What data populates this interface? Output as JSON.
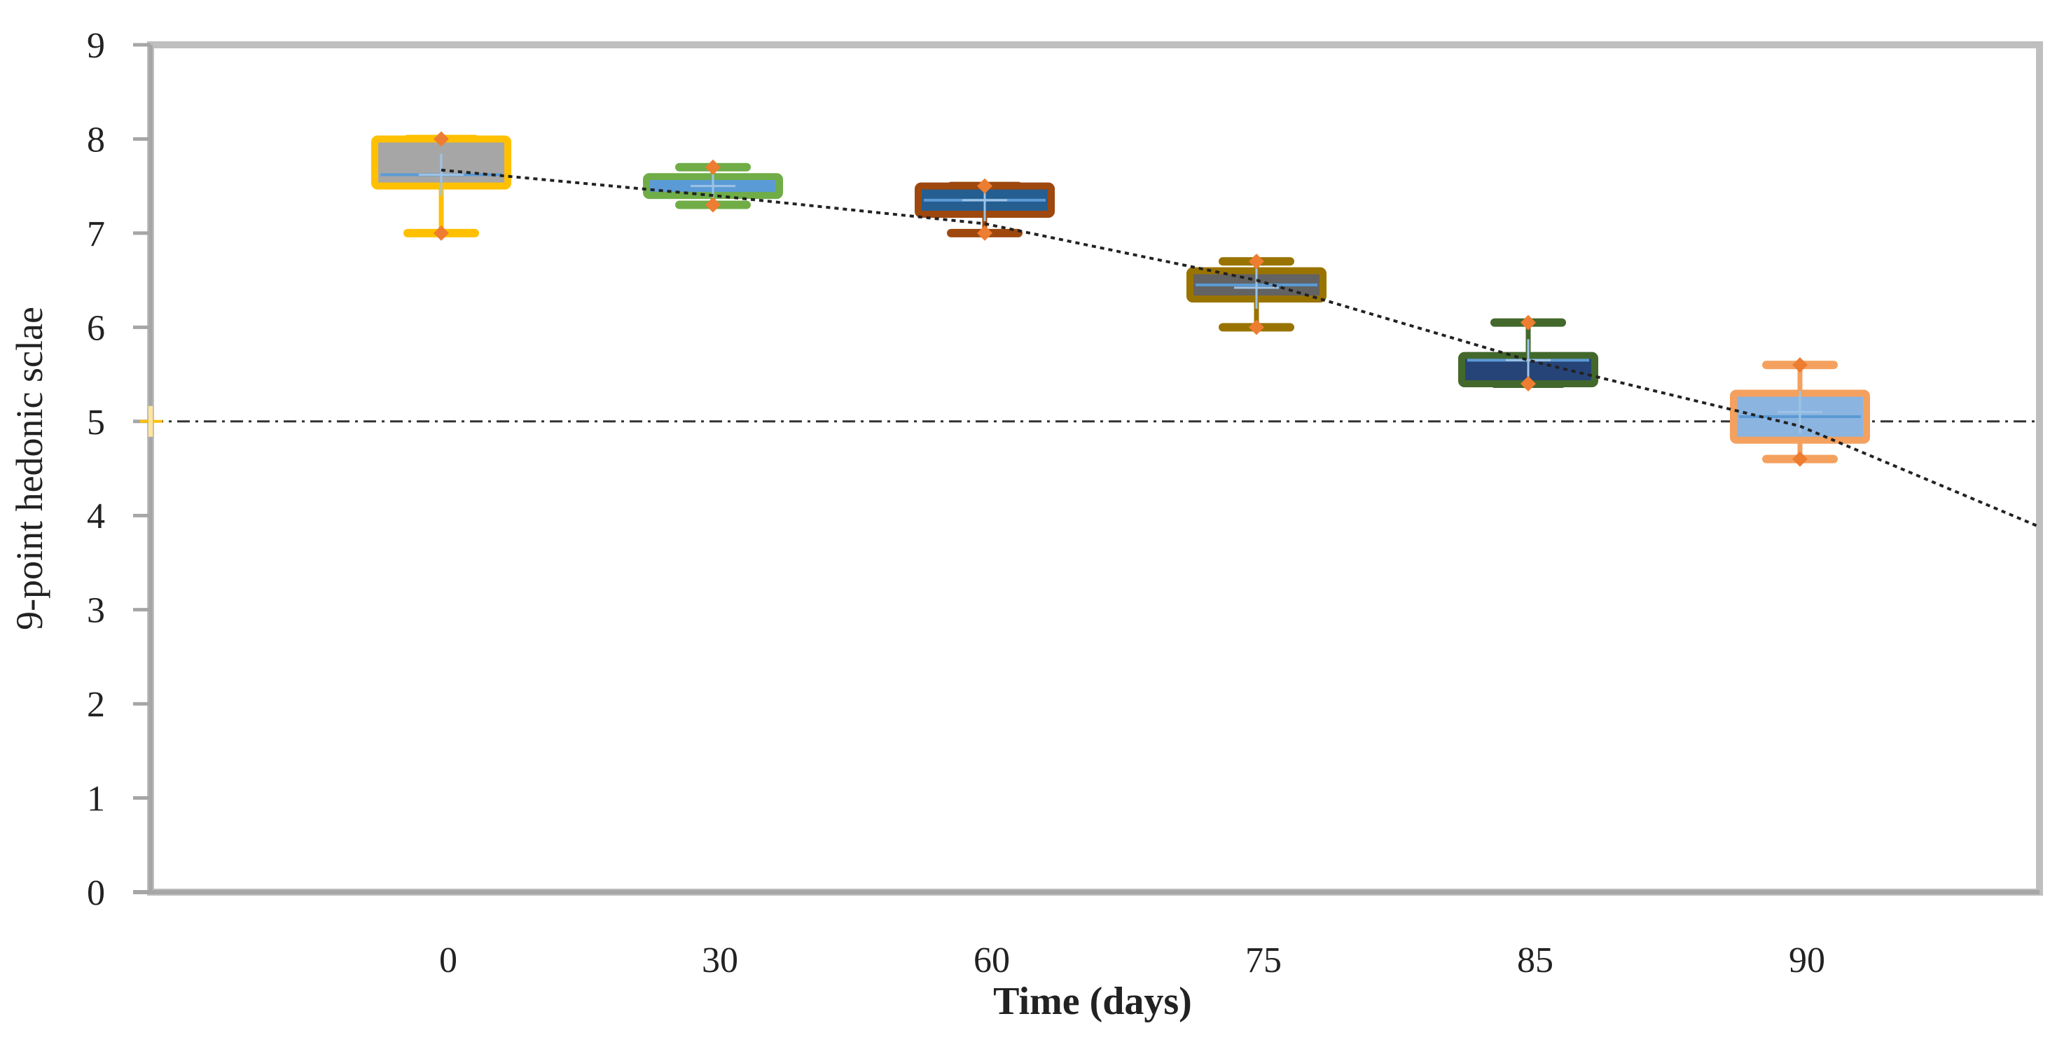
{
  "chart_data": {
    "type": "box",
    "title": "",
    "xlabel": "Time (days)",
    "ylabel": "9-point hedonic sclae",
    "ylim": [
      0,
      9
    ],
    "yticks": [
      "0",
      "1",
      "2",
      "3",
      "4",
      "5",
      "6",
      "7",
      "8",
      "9"
    ],
    "categories": [
      "0",
      "30",
      "60",
      "75",
      "85",
      "90"
    ],
    "boxes": [
      {
        "category": "0",
        "min": 7.0,
        "q1": 7.5,
        "median": 7.62,
        "q3": 8.0,
        "max": 8.0,
        "mean": 7.62,
        "fill": "#a6a6a6",
        "edge": "#ffc000"
      },
      {
        "category": "30",
        "min": 7.3,
        "q1": 7.4,
        "median": 7.55,
        "q3": 7.6,
        "max": 7.7,
        "mean": 7.5,
        "fill": "#5b9bd5",
        "edge": "#70ad47"
      },
      {
        "category": "60",
        "min": 7.0,
        "q1": 7.2,
        "median": 7.35,
        "q3": 7.5,
        "max": 7.5,
        "mean": 7.35,
        "fill": "#255e91",
        "edge": "#9e480e"
      },
      {
        "category": "75",
        "min": 6.0,
        "q1": 6.3,
        "median": 6.45,
        "q3": 6.6,
        "max": 6.7,
        "mean": 6.42,
        "fill": "#636363",
        "edge": "#997300"
      },
      {
        "category": "85",
        "min": 5.4,
        "q1": 5.4,
        "median": 5.65,
        "q3": 5.7,
        "max": 6.05,
        "mean": 5.65,
        "fill": "#264478",
        "edge": "#43682b"
      },
      {
        "category": "90",
        "min": 4.6,
        "q1": 4.8,
        "median": 5.05,
        "q3": 5.3,
        "max": 5.6,
        "mean": 5.1,
        "fill": "#8bb4e0",
        "edge": "#f4a15f"
      }
    ],
    "reference_line": {
      "y": 5,
      "style": "dash-dot"
    },
    "trendline": {
      "type": "polynomial",
      "style": "dotted",
      "points": [
        [
          0,
          7.67
        ],
        [
          30,
          7.4
        ],
        [
          60,
          7.1
        ],
        [
          75,
          6.5
        ],
        [
          85,
          5.65
        ],
        [
          90,
          4.95
        ],
        [
          100,
          3.88
        ]
      ]
    },
    "grid": false,
    "legend": "none"
  }
}
